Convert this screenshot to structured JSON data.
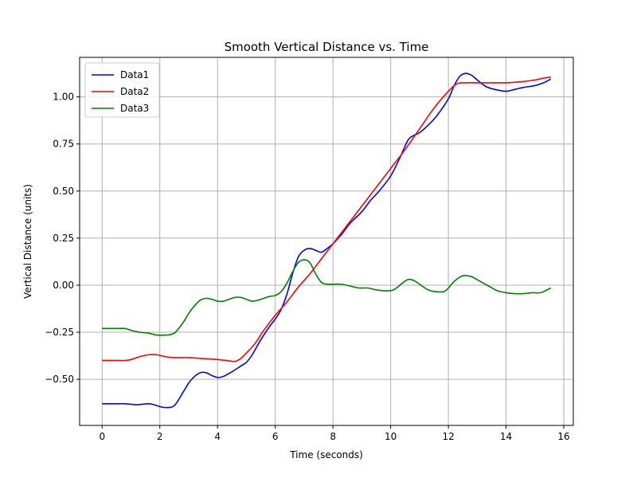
{
  "chart_data": {
    "type": "line",
    "title": "Smooth Vertical Distance vs. Time",
    "xlabel": "Time (seconds)",
    "ylabel": "Vertical Distance (units)",
    "xlim": [
      -0.78,
      16.33
    ],
    "ylim": [
      -0.745,
      1.21
    ],
    "x_ticks": [
      0,
      2,
      4,
      6,
      8,
      10,
      12,
      14,
      16
    ],
    "y_ticks": [
      -0.5,
      -0.25,
      0.0,
      0.25,
      0.5,
      0.75,
      1.0
    ],
    "x_tick_labels": [
      "0",
      "2",
      "4",
      "6",
      "8",
      "10",
      "12",
      "14",
      "16"
    ],
    "y_tick_labels": [
      "−0.50",
      "−0.25",
      "0.00",
      "0.25",
      "0.50",
      "0.75",
      "1.00"
    ],
    "grid": true,
    "legend_position": "top-left",
    "series": [
      {
        "name": "Data1",
        "color": "#0000ff",
        "x": [
          0,
          0.5,
          0.8,
          1.2,
          1.6,
          1.8,
          2.0,
          2.2,
          2.5,
          2.8,
          3.0,
          3.2,
          3.4,
          3.6,
          3.8,
          4.0,
          4.2,
          4.5,
          4.8,
          5.0,
          5.2,
          5.5,
          5.8,
          6.0,
          6.2,
          6.4,
          6.6,
          6.8,
          7.0,
          7.2,
          7.4,
          7.6,
          7.8,
          8.0,
          8.3,
          8.6,
          9.0,
          9.3,
          9.6,
          10.0,
          10.3,
          10.6,
          10.8,
          11.0,
          11.3,
          11.6,
          12.0,
          12.2,
          12.4,
          12.6,
          12.8,
          13.0,
          13.3,
          13.6,
          14.0,
          14.3,
          14.6,
          15.0,
          15.3,
          15.55
        ],
        "y": [
          -0.63,
          -0.63,
          -0.63,
          -0.635,
          -0.63,
          -0.635,
          -0.645,
          -0.65,
          -0.64,
          -0.57,
          -0.52,
          -0.485,
          -0.465,
          -0.465,
          -0.48,
          -0.49,
          -0.485,
          -0.46,
          -0.43,
          -0.41,
          -0.37,
          -0.29,
          -0.22,
          -0.18,
          -0.13,
          -0.05,
          0.06,
          0.15,
          0.185,
          0.195,
          0.185,
          0.175,
          0.195,
          0.22,
          0.27,
          0.33,
          0.39,
          0.45,
          0.5,
          0.58,
          0.67,
          0.77,
          0.795,
          0.81,
          0.85,
          0.9,
          0.99,
          1.06,
          1.11,
          1.125,
          1.115,
          1.09,
          1.055,
          1.04,
          1.03,
          1.04,
          1.05,
          1.06,
          1.075,
          1.095
        ]
      },
      {
        "name": "Data2",
        "color": "#ff0000",
        "x": [
          0,
          0.5,
          0.8,
          1.0,
          1.3,
          1.6,
          1.9,
          2.2,
          2.5,
          3.0,
          3.5,
          4.0,
          4.3,
          4.6,
          4.8,
          5.0,
          5.3,
          5.6,
          6.0,
          6.4,
          6.8,
          7.2,
          7.6,
          8.0,
          8.5,
          9.0,
          9.5,
          10.0,
          10.5,
          11.0,
          11.5,
          12.0,
          12.3,
          12.6,
          13.0,
          13.5,
          14.0,
          14.5,
          15.0,
          15.3,
          15.55
        ],
        "y": [
          -0.4,
          -0.4,
          -0.4,
          -0.395,
          -0.38,
          -0.37,
          -0.37,
          -0.38,
          -0.385,
          -0.385,
          -0.39,
          -0.395,
          -0.4,
          -0.405,
          -0.39,
          -0.36,
          -0.31,
          -0.24,
          -0.16,
          -0.09,
          -0.01,
          0.06,
          0.14,
          0.22,
          0.32,
          0.42,
          0.52,
          0.62,
          0.72,
          0.83,
          0.94,
          1.03,
          1.07,
          1.075,
          1.075,
          1.075,
          1.075,
          1.08,
          1.09,
          1.1,
          1.105
        ]
      },
      {
        "name": "Data3",
        "color": "#008000",
        "x": [
          0,
          0.5,
          0.8,
          1.0,
          1.3,
          1.6,
          1.9,
          2.2,
          2.5,
          2.8,
          3.0,
          3.2,
          3.4,
          3.6,
          3.8,
          4.0,
          4.2,
          4.4,
          4.6,
          4.8,
          5.0,
          5.2,
          5.4,
          5.6,
          5.8,
          6.0,
          6.2,
          6.4,
          6.6,
          6.8,
          7.0,
          7.2,
          7.4,
          7.6,
          7.8,
          8.0,
          8.3,
          8.6,
          8.9,
          9.2,
          9.5,
          9.8,
          10.1,
          10.4,
          10.6,
          10.8,
          11.0,
          11.3,
          11.6,
          11.9,
          12.2,
          12.5,
          12.8,
          13.1,
          13.4,
          13.7,
          14.0,
          14.3,
          14.6,
          14.9,
          15.2,
          15.55
        ],
        "y": [
          -0.23,
          -0.23,
          -0.23,
          -0.24,
          -0.25,
          -0.255,
          -0.265,
          -0.265,
          -0.255,
          -0.2,
          -0.15,
          -0.11,
          -0.08,
          -0.07,
          -0.075,
          -0.085,
          -0.085,
          -0.075,
          -0.065,
          -0.065,
          -0.075,
          -0.085,
          -0.08,
          -0.07,
          -0.06,
          -0.055,
          -0.035,
          0.01,
          0.07,
          0.12,
          0.135,
          0.12,
          0.06,
          0.015,
          0.005,
          0.005,
          0.005,
          -0.005,
          -0.015,
          -0.015,
          -0.025,
          -0.03,
          -0.025,
          0.01,
          0.03,
          0.025,
          0.005,
          -0.025,
          -0.035,
          -0.03,
          0.02,
          0.05,
          0.045,
          0.02,
          -0.005,
          -0.03,
          -0.04,
          -0.045,
          -0.045,
          -0.04,
          -0.04,
          -0.015
        ]
      }
    ]
  }
}
